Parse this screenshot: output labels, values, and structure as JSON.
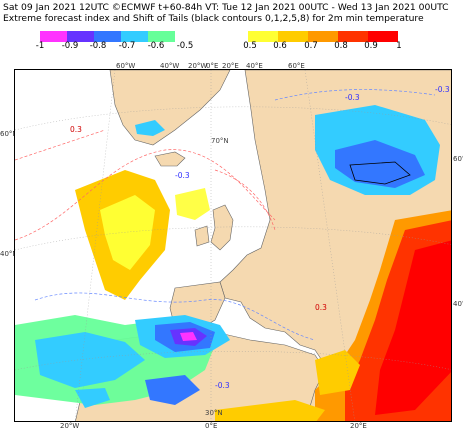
{
  "header": {
    "line1": "Sat 09 Jan 2021 12UTC ©ECMWF t+60-84h  VT: Tue 12 Jan 2021 00UTC - Wed 13 Jan 2021 00UTC",
    "line2": "Extreme forecast index and Shift of Tails (black contours 0,1,2,5,8) for 2m min temperature"
  },
  "legend_negative": {
    "ticks": [
      "-1",
      "-0.9",
      "-0.8",
      "-0.7",
      "-0.6",
      "-0.5"
    ],
    "colors": [
      "#ff33ff",
      "#6633ff",
      "#3377ff",
      "#33ccff",
      "#66ff99",
      "#ccff66"
    ]
  },
  "legend_positive": {
    "ticks": [
      "0.5",
      "0.6",
      "0.7",
      "0.8",
      "0.9",
      "1"
    ],
    "colors": [
      "#ffff33",
      "#ffcc00",
      "#ff9900",
      "#ff3300",
      "#ff0000"
    ]
  },
  "map": {
    "land_color": "#f5d9b0",
    "sea_color": "#ffffff",
    "top_lon_labels": [
      "60°W",
      "40°W",
      "20°W",
      "0°E",
      "20°E",
      "40°E",
      "60°E"
    ],
    "bottom_lon_labels": [
      "20°W",
      "0°E",
      "20°E"
    ],
    "left_lat_labels": [
      "60°N",
      "40°N"
    ],
    "right_lat_labels": [
      "60°N",
      "40°N"
    ],
    "inner_lat_labels": [
      "70°N",
      "30°N"
    ],
    "contour_labels": [
      "0.3",
      "-0.3"
    ]
  }
}
